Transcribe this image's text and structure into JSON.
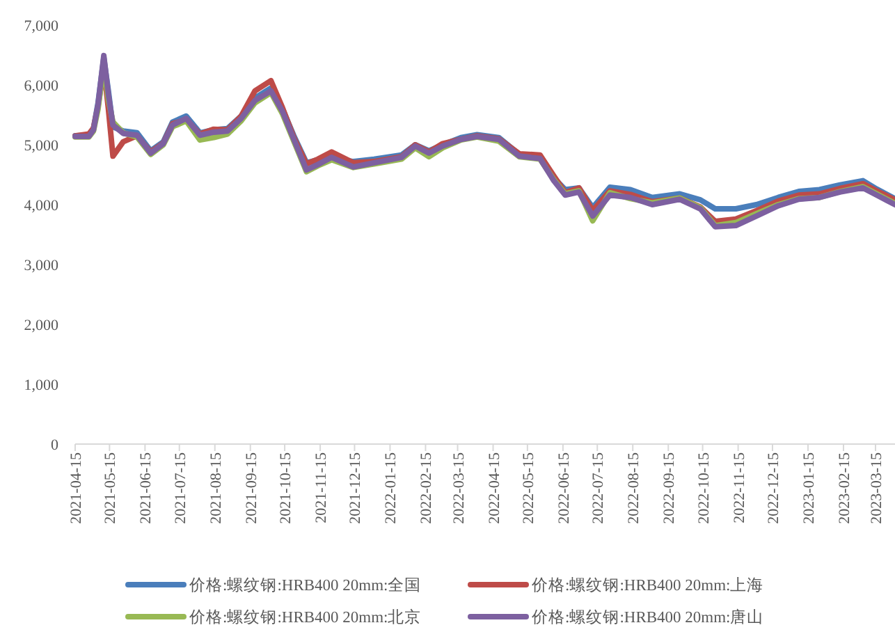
{
  "chart_data": {
    "type": "line",
    "x": [
      "2021-04-15",
      "2021-04-27",
      "2021-05-01",
      "2021-05-05",
      "2021-05-10",
      "2021-05-14",
      "2021-05-18",
      "2021-05-27",
      "2021-06-08",
      "2021-06-20",
      "2021-07-01",
      "2021-07-09",
      "2021-07-21",
      "2021-08-02",
      "2021-08-14",
      "2021-08-26",
      "2021-09-07",
      "2021-09-19",
      "2021-10-03",
      "2021-10-13",
      "2021-10-23",
      "2021-11-03",
      "2021-11-13",
      "2021-11-25",
      "2021-12-14",
      "2022-01-01",
      "2022-01-25",
      "2022-02-06",
      "2022-02-18",
      "2022-03-02",
      "2022-03-18",
      "2022-04-01",
      "2022-04-20",
      "2022-05-08",
      "2022-05-26",
      "2022-06-07",
      "2022-06-17",
      "2022-06-29",
      "2022-07-11",
      "2022-07-26",
      "2022-08-13",
      "2022-09-01",
      "2022-09-25",
      "2022-10-13",
      "2022-10-26",
      "2022-11-13",
      "2022-12-01",
      "2022-12-20",
      "2023-01-07",
      "2023-01-25",
      "2023-02-12",
      "2023-03-04",
      "2023-03-16",
      "2023-04-01"
    ],
    "series": [
      {
        "name": "价格:螺纹钢:HRB400 20mm:全国",
        "color": "#4a7ebb",
        "values": [
          5150,
          5160,
          5270,
          5700,
          6450,
          5900,
          5300,
          5230,
          5200,
          4900,
          5050,
          5380,
          5480,
          5200,
          5250,
          5270,
          5480,
          5780,
          5950,
          5600,
          5150,
          4700,
          4750,
          4780,
          4720,
          4760,
          4830,
          5000,
          4900,
          5000,
          5120,
          5170,
          5120,
          4840,
          4800,
          4450,
          4250,
          4280,
          3950,
          4290,
          4250,
          4120,
          4180,
          4080,
          3930,
          3930,
          4000,
          4120,
          4220,
          4250,
          4330,
          4400,
          4260,
          4100
        ]
      },
      {
        "name": "价格:螺纹钢:HRB400 20mm:上海",
        "color": "#be4b48",
        "values": [
          5150,
          5180,
          5280,
          5650,
          6300,
          5600,
          4810,
          5050,
          5150,
          4880,
          5030,
          5350,
          5420,
          5180,
          5260,
          5250,
          5480,
          5900,
          6070,
          5620,
          5120,
          4680,
          4760,
          4880,
          4700,
          4720,
          4800,
          5000,
          4880,
          5020,
          5090,
          5150,
          5100,
          4850,
          4830,
          4480,
          4200,
          4280,
          3900,
          4230,
          4170,
          4050,
          4110,
          3960,
          3720,
          3760,
          3900,
          4060,
          4160,
          4180,
          4270,
          4350,
          4230,
          4080
        ]
      },
      {
        "name": "价格:螺纹钢:HRB400 20mm:北京",
        "color": "#98b954",
        "values": [
          5130,
          5130,
          5230,
          5600,
          6350,
          5750,
          5380,
          5200,
          5130,
          4840,
          5000,
          5300,
          5400,
          5080,
          5120,
          5180,
          5400,
          5700,
          5870,
          5520,
          5060,
          4550,
          4650,
          4750,
          4620,
          4680,
          4760,
          4950,
          4800,
          4950,
          5080,
          5130,
          5060,
          4800,
          4760,
          4420,
          4180,
          4230,
          3730,
          4200,
          4100,
          4030,
          4110,
          3950,
          3650,
          3700,
          3850,
          4000,
          4100,
          4120,
          4220,
          4300,
          4180,
          4020
        ]
      },
      {
        "name": "价格:螺纹钢:HRB400 20mm:唐山",
        "color": "#7d60a0",
        "values": [
          5140,
          5140,
          5250,
          5670,
          6490,
          5840,
          5330,
          5190,
          5160,
          4860,
          5020,
          5330,
          5440,
          5160,
          5210,
          5230,
          5440,
          5740,
          5900,
          5560,
          5090,
          4580,
          4670,
          4790,
          4630,
          4700,
          4790,
          4980,
          4860,
          4980,
          5090,
          5140,
          5090,
          4810,
          4770,
          4400,
          4160,
          4210,
          3810,
          4160,
          4120,
          4000,
          4090,
          3930,
          3630,
          3650,
          3810,
          3980,
          4090,
          4120,
          4210,
          4280,
          4160,
          4000
        ]
      }
    ],
    "xlim": [
      "2021-04-15",
      "2023-04-01"
    ],
    "xticks": [
      "2021-04-15",
      "2021-05-15",
      "2021-06-15",
      "2021-07-15",
      "2021-08-15",
      "2021-09-15",
      "2021-10-15",
      "2021-11-15",
      "2021-12-15",
      "2022-01-15",
      "2022-02-15",
      "2022-03-15",
      "2022-04-15",
      "2022-05-15",
      "2022-06-15",
      "2022-07-15",
      "2022-08-15",
      "2022-09-15",
      "2022-10-15",
      "2022-11-15",
      "2022-12-15",
      "2023-01-15",
      "2023-02-15",
      "2023-03-15"
    ],
    "ylim": [
      0,
      7000
    ],
    "yticks": [
      0,
      {
        "value": 1000,
        "label": "1,000"
      },
      {
        "value": 2000,
        "label": "2,000"
      },
      {
        "value": 3000,
        "label": "3,000"
      },
      {
        "value": 4000,
        "label": "4,000"
      },
      {
        "value": 5000,
        "label": "5,000"
      },
      {
        "value": 6000,
        "label": "6,000"
      },
      {
        "value": 7000,
        "label": "7,000"
      }
    ],
    "grid": false,
    "legend": "bottom",
    "marker": "none",
    "line_style": "solid"
  }
}
